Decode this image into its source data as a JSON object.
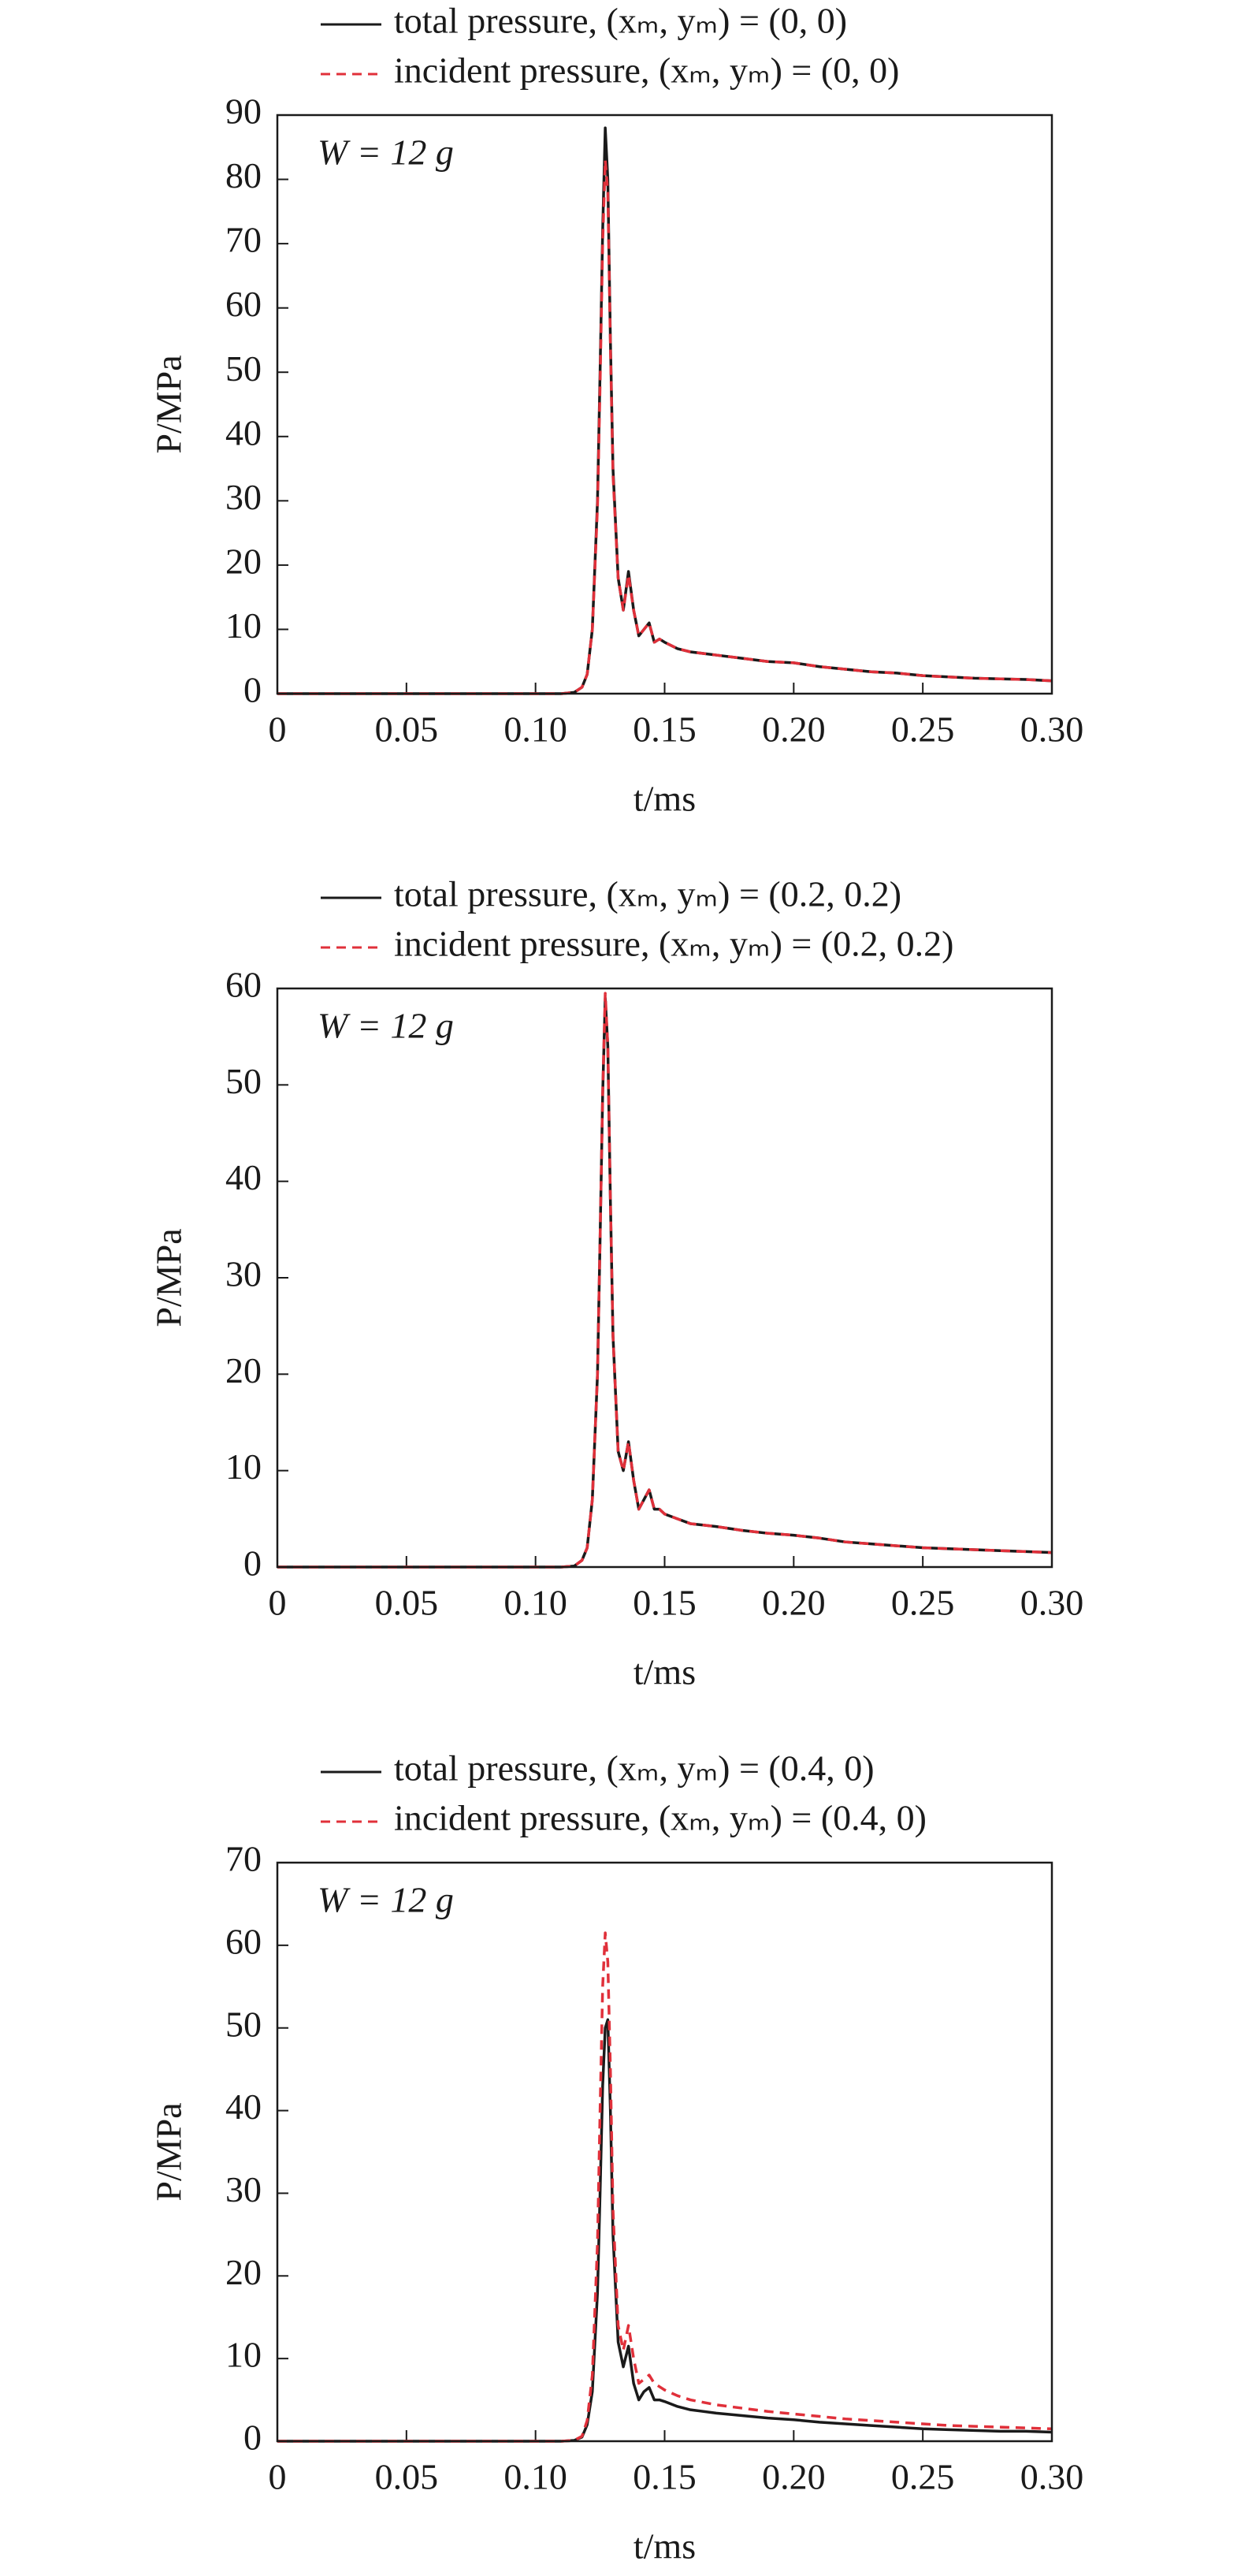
{
  "chart_data": [
    {
      "type": "line",
      "annotation": "W = 12 g",
      "xlabel": "t/ms",
      "ylabel": "P/MPa",
      "xlim": [
        0,
        0.3
      ],
      "xticks": [
        0,
        0.05,
        {
          "value": 0.1,
          "label": "0.10"
        },
        0.15,
        {
          "value": 0.2,
          "label": "0.20"
        },
        0.25,
        {
          "value": 0.3,
          "label": "0.30"
        }
      ],
      "ylim": [
        0,
        90
      ],
      "yticks": [
        0,
        10,
        20,
        30,
        40,
        50,
        60,
        70,
        80,
        90
      ],
      "x": [
        0,
        0.05,
        0.1,
        0.11,
        0.115,
        0.118,
        0.12,
        0.122,
        0.124,
        0.125,
        0.126,
        0.127,
        0.128,
        0.129,
        0.13,
        0.132,
        0.134,
        0.136,
        0.138,
        0.14,
        0.142,
        0.144,
        0.146,
        0.148,
        0.15,
        0.155,
        0.16,
        0.17,
        0.18,
        0.19,
        0.2,
        0.21,
        0.22,
        0.23,
        0.24,
        0.25,
        0.26,
        0.27,
        0.28,
        0.29,
        0.3
      ],
      "series": [
        {
          "name": "total pressure, (xₘ, yₘ) = (0, 0)",
          "color": "#1a1a1a",
          "dash": "solid",
          "values": [
            0,
            0,
            0,
            0,
            0.2,
            1,
            3,
            10,
            30,
            50,
            72,
            88,
            80,
            55,
            35,
            18,
            13,
            19,
            13,
            9,
            10,
            11,
            8,
            8.5,
            8,
            7,
            6.5,
            6,
            5.5,
            5,
            4.8,
            4.2,
            3.8,
            3.4,
            3.2,
            2.8,
            2.6,
            2.4,
            2.3,
            2.2,
            2.0
          ]
        },
        {
          "name": "incident pressure, (xₘ, yₘ) = (0, 0)",
          "color": "#e0303a",
          "dash": "dashed",
          "values": [
            0,
            0,
            0,
            0,
            0.2,
            1,
            3,
            10,
            29,
            48,
            70,
            83,
            78,
            54,
            34,
            18,
            13,
            18.5,
            13,
            9,
            10,
            11,
            8,
            8.5,
            8,
            7,
            6.5,
            6,
            5.5,
            5,
            4.8,
            4.2,
            3.8,
            3.4,
            3.2,
            2.8,
            2.6,
            2.4,
            2.3,
            2.2,
            2.0
          ]
        }
      ]
    },
    {
      "type": "line",
      "annotation": "W = 12 g",
      "xlabel": "t/ms",
      "ylabel": "P/MPa",
      "xlim": [
        0,
        0.3
      ],
      "xticks": [
        0,
        0.05,
        {
          "value": 0.1,
          "label": "0.10"
        },
        0.15,
        {
          "value": 0.2,
          "label": "0.20"
        },
        0.25,
        {
          "value": 0.3,
          "label": "0.30"
        }
      ],
      "ylim": [
        0,
        60
      ],
      "yticks": [
        0,
        10,
        20,
        30,
        40,
        50,
        60
      ],
      "x": [
        0,
        0.05,
        0.1,
        0.11,
        0.115,
        0.118,
        0.12,
        0.122,
        0.124,
        0.125,
        0.126,
        0.127,
        0.128,
        0.129,
        0.13,
        0.132,
        0.134,
        0.136,
        0.138,
        0.14,
        0.142,
        0.144,
        0.146,
        0.148,
        0.15,
        0.155,
        0.16,
        0.17,
        0.18,
        0.19,
        0.2,
        0.21,
        0.22,
        0.23,
        0.24,
        0.25,
        0.26,
        0.27,
        0.28,
        0.29,
        0.3
      ],
      "series": [
        {
          "name": "total pressure, (xₘ, yₘ) = (0.2, 0.2)",
          "color": "#1a1a1a",
          "dash": "solid",
          "values": [
            0,
            0,
            0,
            0,
            0.1,
            0.7,
            2,
            7,
            20,
            34,
            49,
            59,
            54,
            38,
            24,
            12,
            10,
            13,
            9,
            6,
            7,
            8,
            6,
            6,
            5.5,
            5,
            4.5,
            4.2,
            3.8,
            3.5,
            3.3,
            3,
            2.6,
            2.4,
            2.2,
            2,
            1.9,
            1.8,
            1.7,
            1.6,
            1.5
          ]
        },
        {
          "name": "incident pressure, (xₘ, yₘ) = (0.2, 0.2)",
          "color": "#e0303a",
          "dash": "dashed",
          "values": [
            0,
            0,
            0,
            0,
            0.1,
            0.7,
            2,
            7,
            20,
            34,
            49,
            59.5,
            54,
            38,
            24,
            12,
            10,
            13,
            9,
            6,
            7,
            8,
            6,
            6,
            5.5,
            5,
            4.5,
            4.2,
            3.8,
            3.5,
            3.3,
            3,
            2.6,
            2.4,
            2.2,
            2,
            1.9,
            1.8,
            1.7,
            1.6,
            1.5
          ]
        }
      ]
    },
    {
      "type": "line",
      "annotation": "W = 12 g",
      "xlabel": "t/ms",
      "ylabel": "P/MPa",
      "xlim": [
        0,
        0.3
      ],
      "xticks": [
        0,
        0.05,
        {
          "value": 0.1,
          "label": "0.10"
        },
        0.15,
        {
          "value": 0.2,
          "label": "0.20"
        },
        0.25,
        {
          "value": 0.3,
          "label": "0.30"
        }
      ],
      "ylim": [
        0,
        70
      ],
      "yticks": [
        0,
        10,
        20,
        30,
        40,
        50,
        60,
        70
      ],
      "x": [
        0,
        0.05,
        0.1,
        0.11,
        0.115,
        0.118,
        0.12,
        0.122,
        0.124,
        0.125,
        0.126,
        0.127,
        0.128,
        0.129,
        0.13,
        0.132,
        0.134,
        0.136,
        0.138,
        0.14,
        0.142,
        0.144,
        0.146,
        0.148,
        0.15,
        0.155,
        0.16,
        0.17,
        0.18,
        0.19,
        0.2,
        0.21,
        0.22,
        0.23,
        0.24,
        0.25,
        0.26,
        0.27,
        0.28,
        0.29,
        0.3
      ],
      "series": [
        {
          "name": "total pressure, (xₘ, yₘ) = (0.4, 0)",
          "color": "#1a1a1a",
          "dash": "solid",
          "values": [
            0,
            0,
            0,
            0,
            0.1,
            0.5,
            2,
            6,
            18,
            30,
            43,
            50,
            51,
            40,
            25,
            12,
            9,
            11.5,
            7,
            5,
            6,
            6.5,
            5,
            5,
            4.8,
            4.2,
            3.8,
            3.4,
            3.1,
            2.8,
            2.6,
            2.3,
            2.1,
            1.9,
            1.7,
            1.5,
            1.4,
            1.3,
            1.2,
            1.2,
            1.1
          ]
        },
        {
          "name": "incident pressure, (xₘ, yₘ) = (0.4, 0)",
          "color": "#e0303a",
          "dash": "dashed",
          "values": [
            0,
            0,
            0,
            0,
            0.1,
            0.6,
            2.5,
            8,
            24,
            40,
            55,
            61.5,
            58,
            45,
            28,
            14,
            11,
            14,
            10,
            7,
            7.5,
            8,
            7,
            6.6,
            6.2,
            5.5,
            5,
            4.4,
            4,
            3.6,
            3.3,
            3,
            2.7,
            2.5,
            2.3,
            2.1,
            1.9,
            1.8,
            1.7,
            1.6,
            1.5
          ]
        }
      ]
    }
  ]
}
